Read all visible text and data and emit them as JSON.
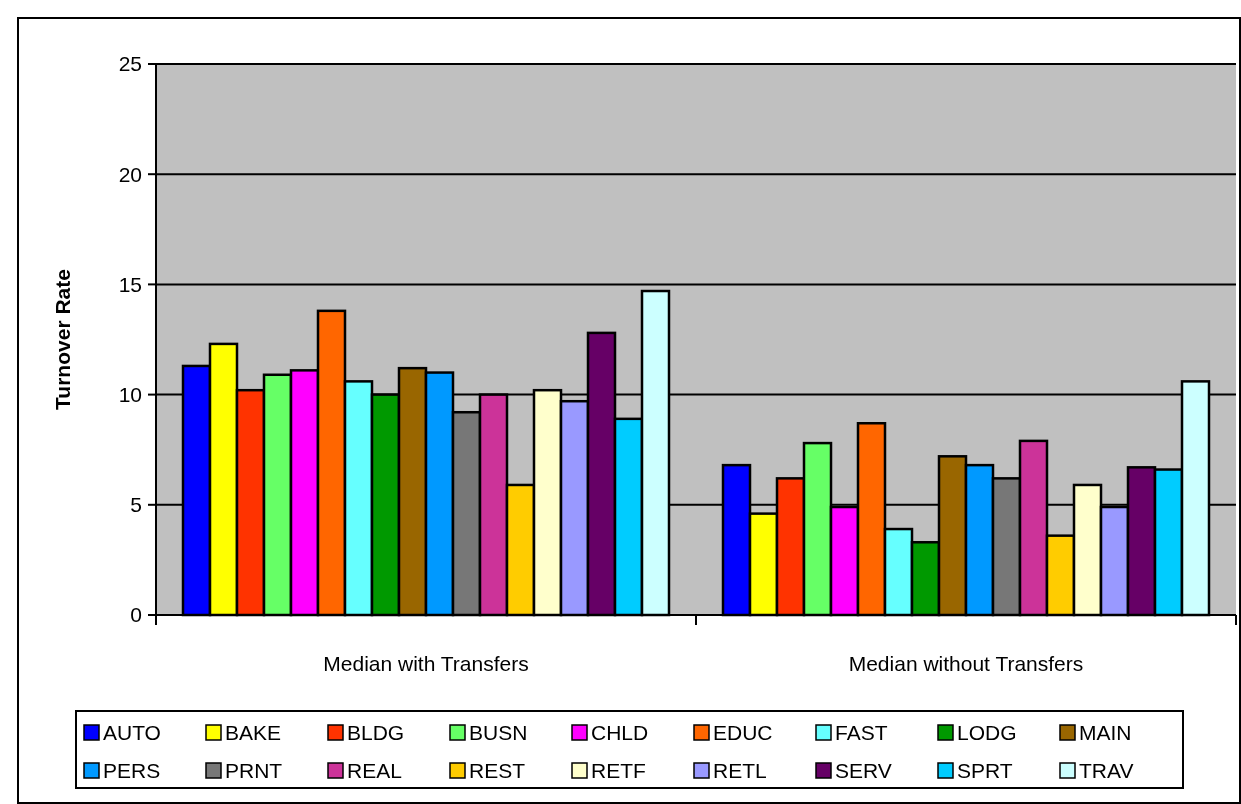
{
  "chart_data": {
    "type": "bar",
    "ylabel": "Turnover Rate",
    "categories": [
      "Median with Transfers",
      "Median without Transfers"
    ],
    "ylim": [
      0,
      25
    ],
    "yticks": [
      0,
      5,
      10,
      15,
      20,
      25
    ],
    "grid": "y",
    "legend": "bottom",
    "series": [
      {
        "name": "AUTO",
        "color": "#0000ff",
        "values": [
          11.3,
          6.8
        ]
      },
      {
        "name": "BAKE",
        "color": "#ffff00",
        "values": [
          12.3,
          4.6
        ]
      },
      {
        "name": "BLDG",
        "color": "#ff3300",
        "values": [
          10.2,
          6.2
        ]
      },
      {
        "name": "BUSN",
        "color": "#66ff66",
        "values": [
          10.9,
          7.8
        ]
      },
      {
        "name": "CHLD",
        "color": "#ff00ff",
        "values": [
          11.1,
          4.9
        ]
      },
      {
        "name": "EDUC",
        "color": "#ff6600",
        "values": [
          13.8,
          8.7
        ]
      },
      {
        "name": "FAST",
        "color": "#66ffff",
        "values": [
          10.6,
          3.9
        ]
      },
      {
        "name": "LODG",
        "color": "#009900",
        "values": [
          10.0,
          3.3
        ]
      },
      {
        "name": "MAIN",
        "color": "#996600",
        "values": [
          11.2,
          7.2
        ]
      },
      {
        "name": "PERS",
        "color": "#0099ff",
        "values": [
          11.0,
          6.8
        ]
      },
      {
        "name": "PRNT",
        "color": "#777777",
        "values": [
          9.2,
          6.2
        ]
      },
      {
        "name": "REAL",
        "color": "#cc3399",
        "values": [
          10.0,
          7.9
        ]
      },
      {
        "name": "REST",
        "color": "#ffcc00",
        "values": [
          5.9,
          3.6
        ]
      },
      {
        "name": "RETF",
        "color": "#ffffcc",
        "values": [
          10.2,
          5.9
        ]
      },
      {
        "name": "RETL",
        "color": "#9999ff",
        "values": [
          9.7,
          4.9
        ]
      },
      {
        "name": "SERV",
        "color": "#660066",
        "values": [
          12.8,
          6.7
        ]
      },
      {
        "name": "SPRT",
        "color": "#00ccff",
        "values": [
          8.9,
          6.6
        ]
      },
      {
        "name": "TRAV",
        "color": "#ccffff",
        "values": [
          14.7,
          10.6
        ]
      }
    ]
  }
}
